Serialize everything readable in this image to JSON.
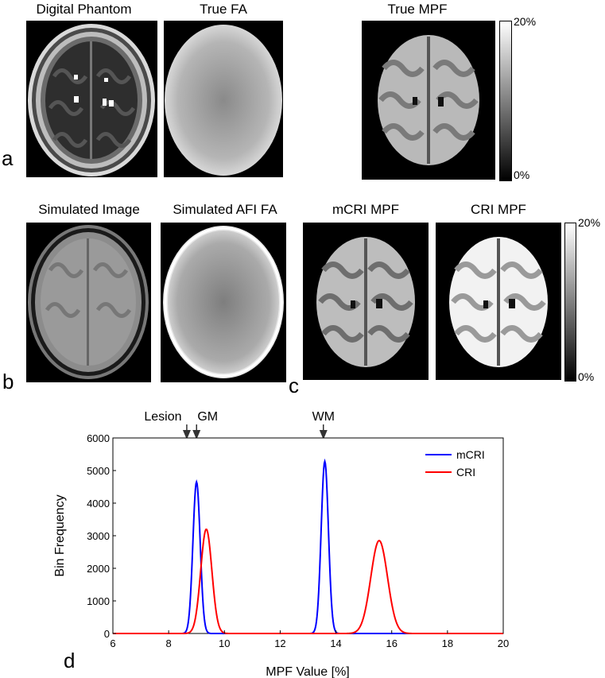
{
  "panels": {
    "a": {
      "label": "a",
      "titles": [
        "Digital Phantom",
        "True FA",
        "True MPF"
      ],
      "colorbar": {
        "max_label": "20%",
        "min_label": "0%"
      }
    },
    "b": {
      "label": "b",
      "titles": [
        "Simulated Image",
        "Simulated AFI FA"
      ]
    },
    "c": {
      "label": "c",
      "titles": [
        "mCRI MPF",
        "CRI MPF"
      ],
      "colorbar": {
        "max_label": "20%",
        "min_label": "0%"
      }
    },
    "d": {
      "label": "d"
    }
  },
  "chart_data": {
    "type": "line",
    "xlabel": "MPF Value [%]",
    "ylabel": "Bin Frequency",
    "xlim": [
      6,
      20
    ],
    "ylim": [
      0,
      6000
    ],
    "xticks": [
      6,
      8,
      10,
      12,
      14,
      16,
      18,
      20
    ],
    "yticks": [
      0,
      1000,
      2000,
      3000,
      4000,
      5000,
      6000
    ],
    "legend_position": "top-right",
    "series": [
      {
        "name": "mCRI",
        "color": "#0000ff",
        "peaks": [
          {
            "center": 9.0,
            "height": 4650,
            "width": 0.13
          },
          {
            "center": 13.6,
            "height": 5280,
            "width": 0.13
          }
        ]
      },
      {
        "name": "CRI",
        "color": "#ff0000",
        "peaks": [
          {
            "center": 9.35,
            "height": 3200,
            "width": 0.2
          },
          {
            "center": 15.55,
            "height": 2850,
            "width": 0.3
          }
        ]
      }
    ],
    "annotations": [
      {
        "text": "Lesion",
        "x": 8.65
      },
      {
        "text": "GM",
        "x": 9.0
      },
      {
        "text": "WM",
        "x": 13.55
      }
    ]
  }
}
